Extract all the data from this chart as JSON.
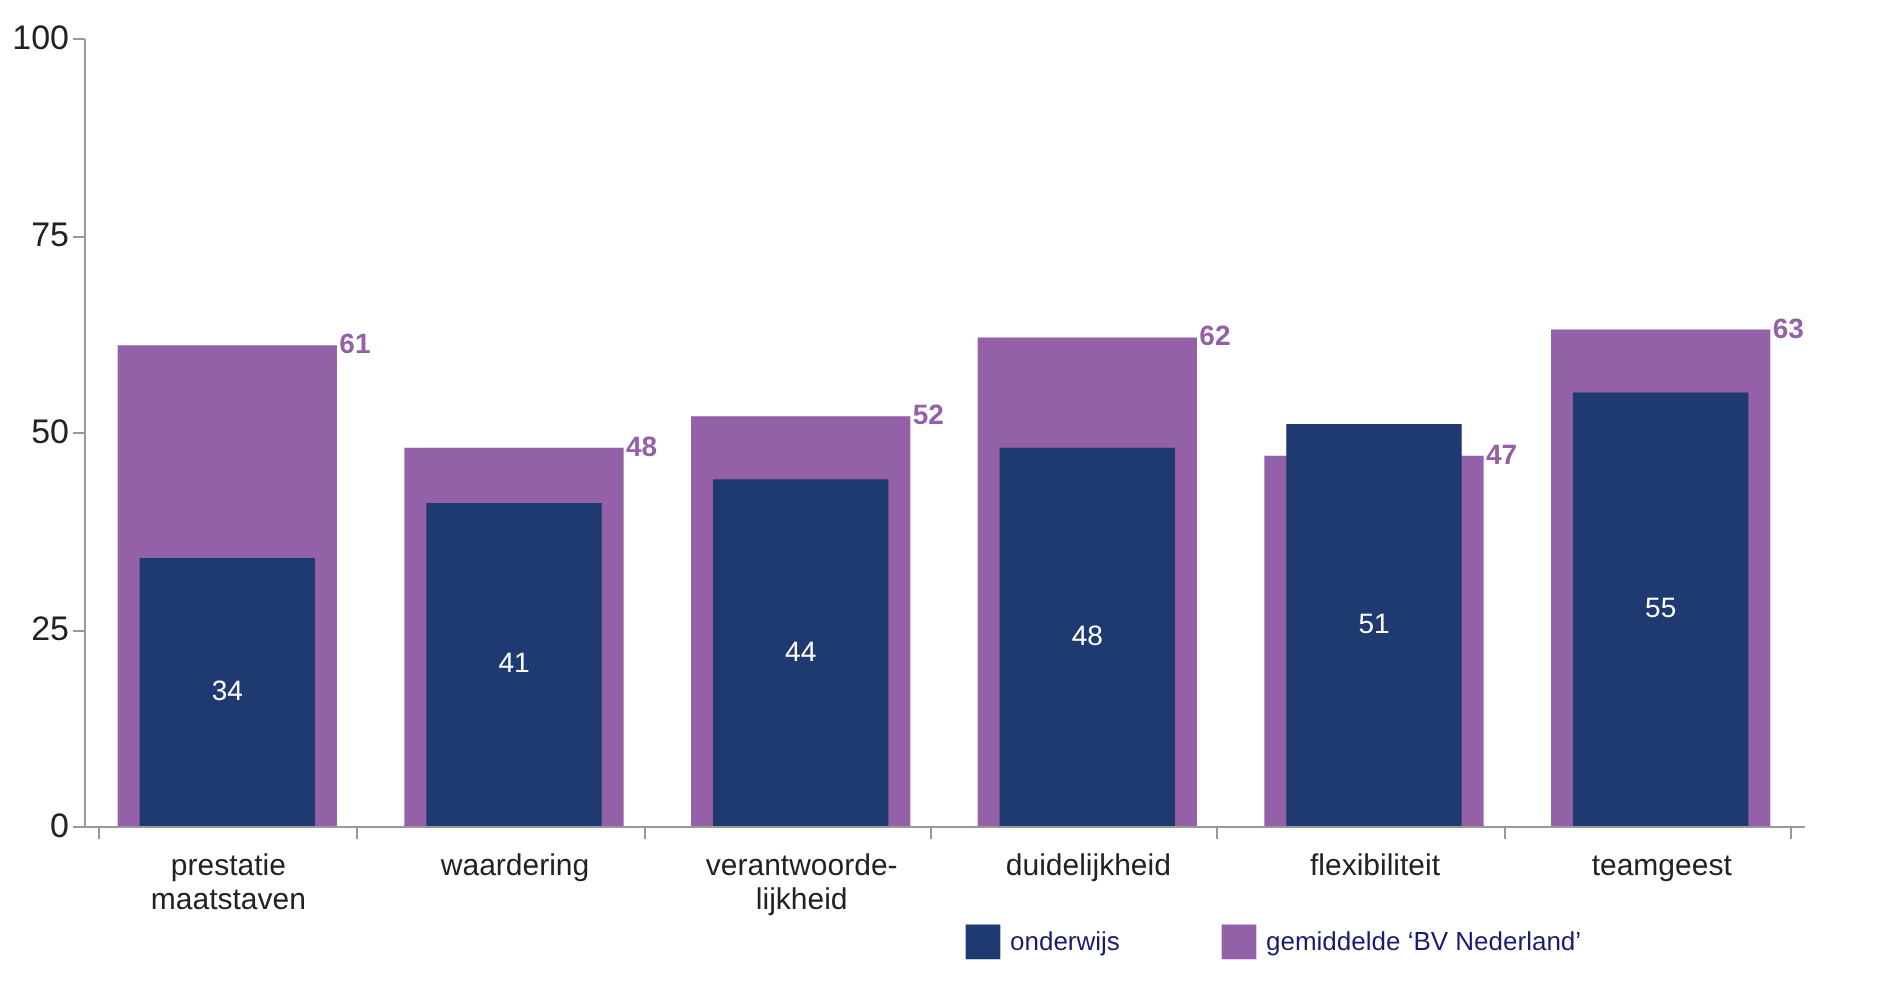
{
  "chart_data": {
    "type": "bar",
    "categories": [
      "prestatie\nmaatstaven",
      "waardering",
      "verantwoorde-\nlijkheid",
      "duidelijkheid",
      "flexibiliteit",
      "teamgeest"
    ],
    "series": [
      {
        "name": "onderwijs",
        "color": "#1f3a70",
        "values": [
          34,
          41,
          44,
          48,
          51,
          55
        ]
      },
      {
        "name": "gemiddelde ‘BV Nederland’",
        "color": "#9460a8",
        "values": [
          61,
          48,
          52,
          62,
          47,
          63
        ]
      }
    ],
    "ylim": [
      0,
      100
    ],
    "yticks": [
      0,
      25,
      50,
      75,
      100
    ],
    "grid": false,
    "legend": "bottom right",
    "data_labels": true
  }
}
